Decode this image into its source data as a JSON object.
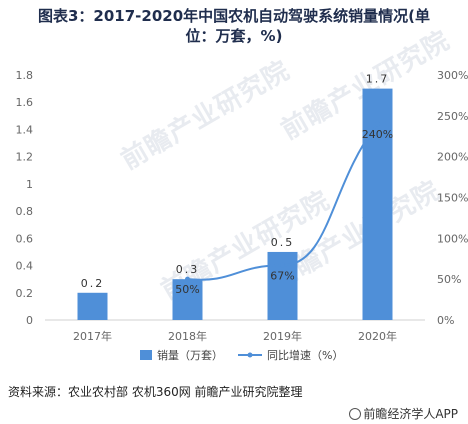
{
  "title_line1": "图表3：2017-2020年中国农机自动驾驶系统销量情况(单",
  "title_line2": "位：万套，%)",
  "watermark": "前瞻产业研究院",
  "source": "资料来源：农业农村部 农机360网 前瞻产业研究院整理",
  "credit": "前瞻经济学人APP",
  "colors": {
    "bar": "#4f8fd8",
    "line": "#4f8fd8",
    "axis_text": "#666666",
    "grid": "#e6e6e6"
  },
  "chart_data": {
    "type": "bar",
    "categories": [
      "2017年",
      "2018年",
      "2019年",
      "2020年"
    ],
    "series": [
      {
        "name": "销量（万套）",
        "type": "bar",
        "axis": "left",
        "values": [
          0.2,
          0.3,
          0.5,
          1.7
        ],
        "labels": [
          "0.2",
          "0.3",
          "0.5",
          "1.7"
        ]
      },
      {
        "name": "同比增速（%）",
        "type": "line",
        "axis": "right",
        "values": [
          null,
          50,
          67,
          240
        ],
        "labels": [
          "",
          "50%",
          "67%",
          "240%"
        ]
      }
    ],
    "ylim_left": [
      0,
      1.8
    ],
    "yticks_left": [
      "0",
      "0.2",
      "0.4",
      "0.6",
      "0.8",
      "1",
      "1.2",
      "1.4",
      "1.6",
      "1.8"
    ],
    "ylim_right": [
      0,
      300
    ],
    "yticks_right": [
      "0%",
      "50%",
      "100%",
      "150%",
      "200%",
      "250%",
      "300%"
    ],
    "legend_position": "bottom",
    "grid": false
  }
}
